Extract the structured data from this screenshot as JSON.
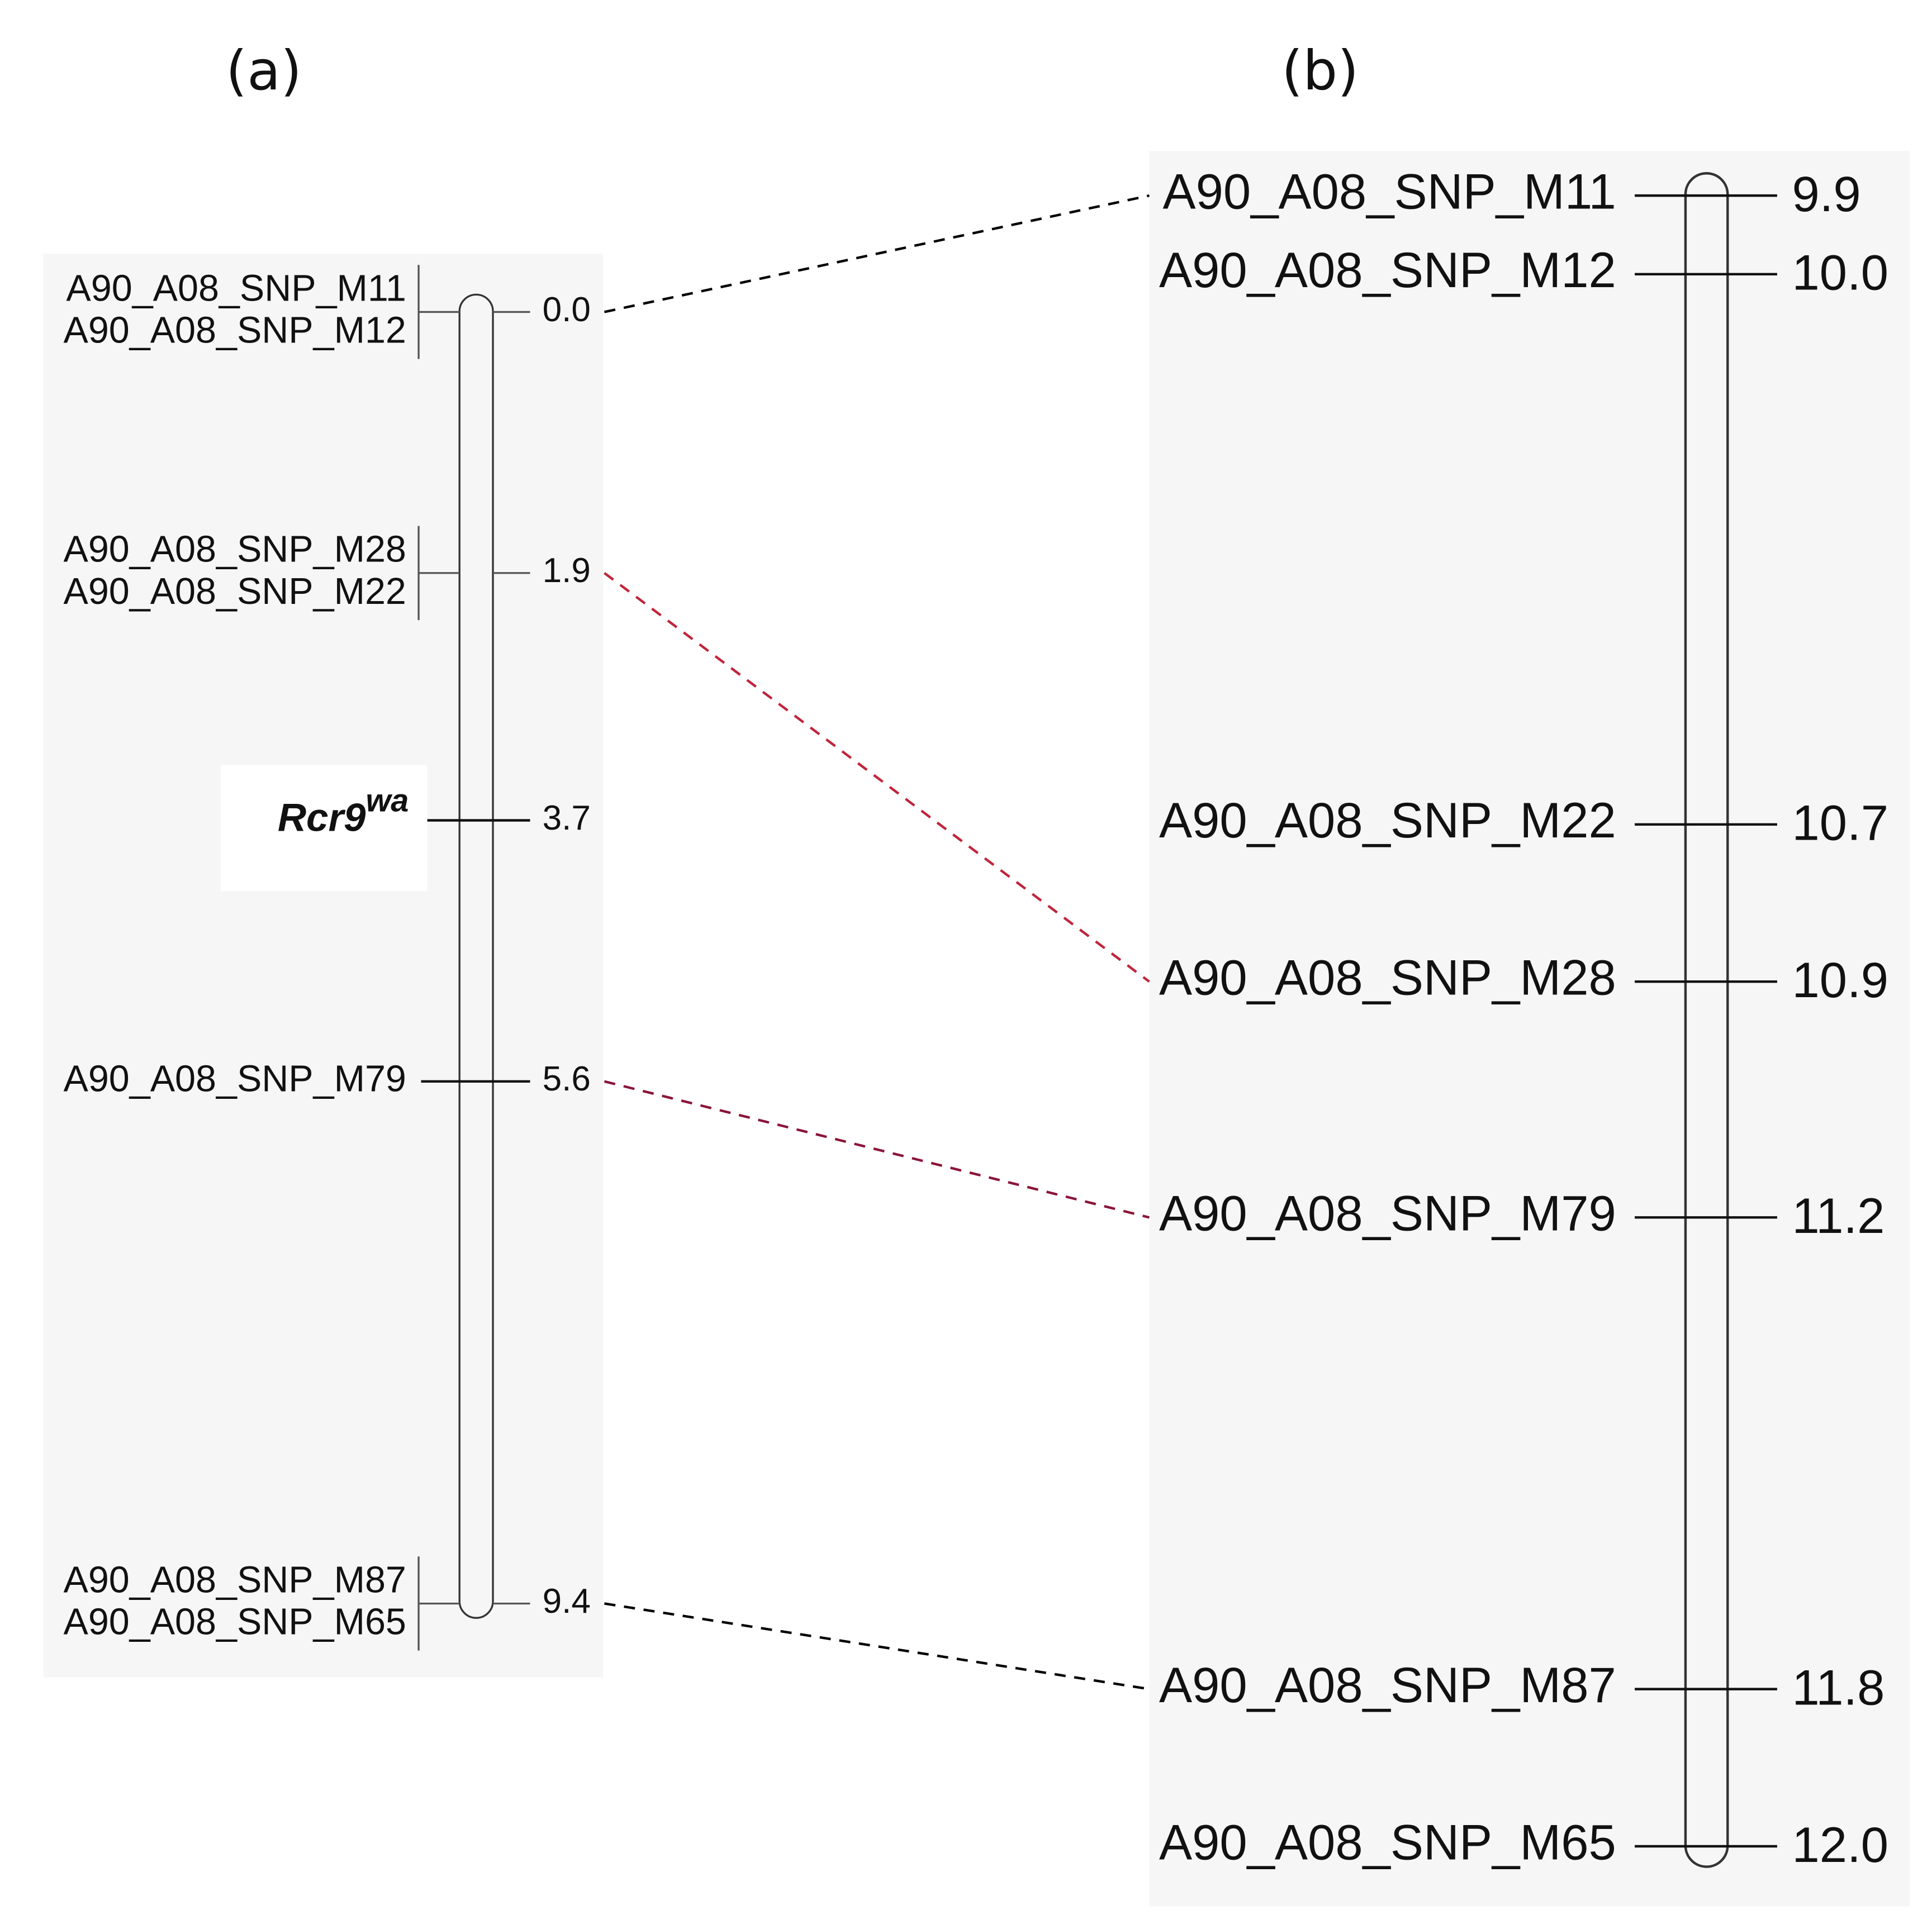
{
  "panel_a": {
    "title": "(a)",
    "groups": [
      {
        "position": "0.0",
        "labels": [
          "A90_A08_SNP_M11",
          "A90_A08_SNP_M12"
        ]
      },
      {
        "position": "1.9",
        "labels": [
          "A90_A08_SNP_M28",
          "A90_A08_SNP_M22"
        ]
      },
      {
        "position": "3.7",
        "gene": {
          "name": "Rcr9",
          "superscript": "wa"
        }
      },
      {
        "position": "5.6",
        "labels": [
          "A90_A08_SNP_M79"
        ]
      },
      {
        "position": "9.4",
        "labels": [
          "A90_A08_SNP_M87",
          "A90_A08_SNP_M65"
        ]
      }
    ]
  },
  "panel_b": {
    "title": "(b)",
    "markers": [
      {
        "position": "9.9",
        "label": "A90_A08_SNP_M11"
      },
      {
        "position": "10.0",
        "label": "A90_A08_SNP_M12"
      },
      {
        "position": "10.7",
        "label": "A90_A08_SNP_M22"
      },
      {
        "position": "10.9",
        "label": "A90_A08_SNP_M28"
      },
      {
        "position": "11.2",
        "label": "A90_A08_SNP_M79"
      },
      {
        "position": "11.8",
        "label": "A90_A08_SNP_M87"
      },
      {
        "position": "12.0",
        "label": "A90_A08_SNP_M65"
      }
    ]
  },
  "connections": [
    {
      "from": 0,
      "to": 0,
      "color": "#000000"
    },
    {
      "from": 1,
      "to": 3,
      "color": "#c0243a"
    },
    {
      "from": 3,
      "to": 4,
      "color": "#8a1538"
    },
    {
      "from": 4,
      "to": 5,
      "color": "#000000"
    }
  ]
}
